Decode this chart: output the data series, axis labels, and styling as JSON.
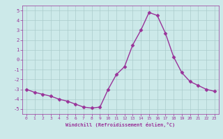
{
  "x": [
    0,
    1,
    2,
    3,
    4,
    5,
    6,
    7,
    8,
    9,
    10,
    11,
    12,
    13,
    14,
    15,
    16,
    17,
    18,
    19,
    20,
    21,
    22,
    23
  ],
  "y": [
    -3.0,
    -3.3,
    -3.5,
    -3.7,
    -4.0,
    -4.2,
    -4.5,
    -4.8,
    -4.9,
    -4.8,
    -3.0,
    -1.5,
    -0.7,
    1.5,
    3.0,
    4.8,
    4.5,
    2.7,
    0.3,
    -1.3,
    -2.2,
    -2.6,
    -3.0,
    -3.2
  ],
  "line_color": "#993399",
  "marker": "D",
  "marker_size": 2.5,
  "background_color": "#cce9e9",
  "grid_color": "#aacccc",
  "xlabel": "Windchill (Refroidissement éolien,°C)",
  "xlabel_color": "#993399",
  "tick_color": "#993399",
  "ylim": [
    -5.5,
    5.5
  ],
  "xlim": [
    -0.5,
    23.5
  ],
  "yticks": [
    -5,
    -4,
    -3,
    -2,
    -1,
    0,
    1,
    2,
    3,
    4,
    5
  ],
  "xticks": [
    0,
    1,
    2,
    3,
    4,
    5,
    6,
    7,
    8,
    9,
    10,
    11,
    12,
    13,
    14,
    15,
    16,
    17,
    18,
    19,
    20,
    21,
    22,
    23
  ]
}
